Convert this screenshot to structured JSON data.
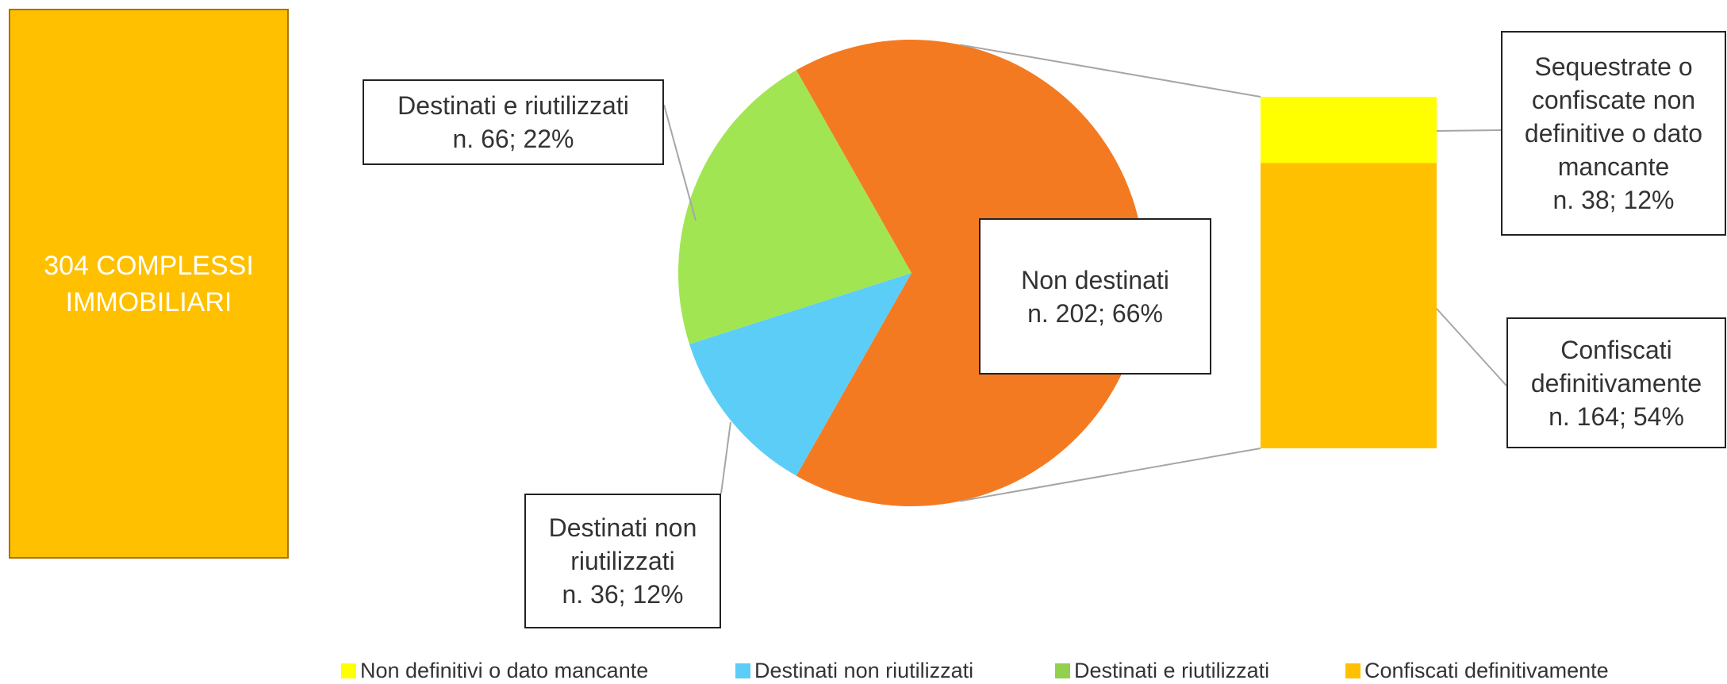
{
  "chart_data": {
    "type": "pie",
    "box_label": "304 COMPLESSI IMMOBILIARI",
    "pie": {
      "categories": [
        "Non destinati",
        "Destinati non riutilizzati",
        "Destinati e riutilizzati"
      ],
      "values": [
        202,
        36,
        66
      ],
      "value_labels": [
        "n. 202; 66%",
        "n. 36; 12%",
        "n. 66; 22%"
      ],
      "colors": [
        "#F47A22",
        "#5CCDF6",
        "#A2E552"
      ]
    },
    "bar": {
      "categories": [
        "Sequestrate o confiscate non definitive o dato mancante",
        "Confiscati definitivamente"
      ],
      "values": [
        38,
        164
      ],
      "value_labels": [
        "n. 38; 12%",
        "n. 164; 54%"
      ],
      "colors": [
        "#FFFF00",
        "#FFC000"
      ]
    },
    "legend": [
      {
        "name": "Non definitivi o dato mancante",
        "color": "#FFFF00"
      },
      {
        "name": "Destinati non riutilizzati",
        "color": "#5CCDF6"
      },
      {
        "name": "Destinati e riutilizzati",
        "color": "#92D050"
      },
      {
        "name": "Confiscati definitivamente",
        "color": "#FFC000"
      }
    ]
  }
}
